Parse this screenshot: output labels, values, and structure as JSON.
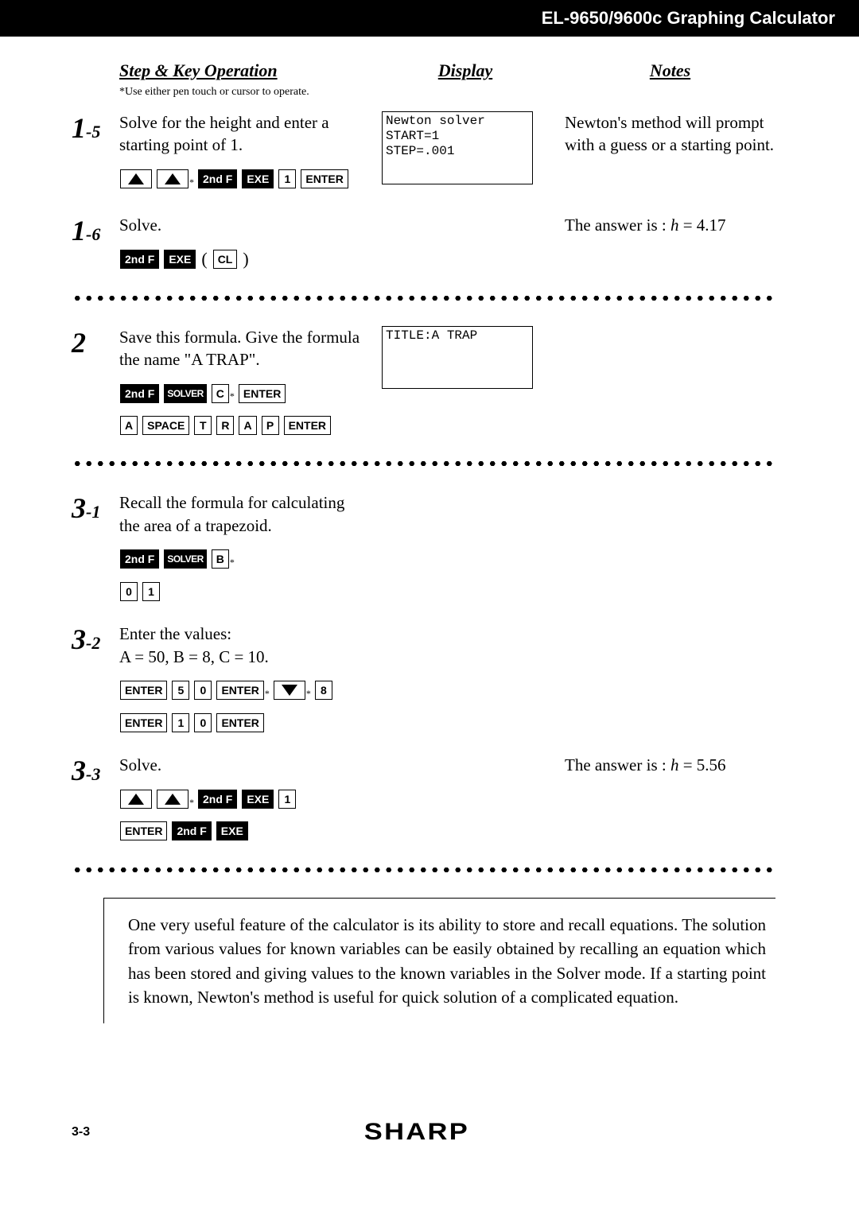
{
  "header": {
    "title": "EL-9650/9600c Graphing Calculator"
  },
  "column_headers": {
    "operation": "Step & Key Operation",
    "display": "Display",
    "notes": "Notes"
  },
  "operation_subnote": "*Use either pen touch or cursor to operate.",
  "steps": {
    "s1_5": {
      "num_big": "1",
      "num_sub": "-5",
      "text": "Solve for the height and enter a starting point of 1.",
      "display": "Newton solver\nSTART=1\nSTEP=.001",
      "note": "Newton's method will prompt with a guess or a starting point.",
      "keys": [
        {
          "t": "arrow-up"
        },
        {
          "t": "arrow-up",
          "star": true
        },
        {
          "t": "dark",
          "label": "2nd F"
        },
        {
          "t": "dark",
          "label": "EXE"
        },
        {
          "t": "light",
          "label": "1"
        },
        {
          "t": "light",
          "label": "ENTER"
        }
      ]
    },
    "s1_6": {
      "num_big": "1",
      "num_sub": "-6",
      "text": "Solve.",
      "note": "The answer is : h = 4.17",
      "keys": [
        {
          "t": "dark",
          "label": "2nd F"
        },
        {
          "t": "dark",
          "label": "EXE"
        },
        {
          "t": "paren",
          "label": "("
        },
        {
          "t": "light",
          "label": "CL"
        },
        {
          "t": "paren",
          "label": ")"
        }
      ]
    },
    "s2": {
      "num_big": "2",
      "num_sub": "",
      "text": "Save this formula. Give the formula the name \"A TRAP\".",
      "display": "TITLE:A TRAP",
      "keys1": [
        {
          "t": "dark",
          "label": "2nd F"
        },
        {
          "t": "dark-small",
          "label": "SOLVER"
        },
        {
          "t": "light",
          "label": "C",
          "star": true
        },
        {
          "t": "light",
          "label": "ENTER"
        }
      ],
      "keys2": [
        {
          "t": "light",
          "label": "A"
        },
        {
          "t": "light",
          "label": "SPACE"
        },
        {
          "t": "light",
          "label": "T"
        },
        {
          "t": "light",
          "label": "R"
        },
        {
          "t": "light",
          "label": "A"
        },
        {
          "t": "light",
          "label": "P"
        },
        {
          "t": "light",
          "label": "ENTER"
        }
      ]
    },
    "s3_1": {
      "num_big": "3",
      "num_sub": "-1",
      "text": "Recall the formula for calculating the area of a trapezoid.",
      "keys1": [
        {
          "t": "dark",
          "label": "2nd F"
        },
        {
          "t": "dark-small",
          "label": "SOLVER"
        },
        {
          "t": "light",
          "label": "B",
          "star": true
        }
      ],
      "keys2": [
        {
          "t": "light",
          "label": "0"
        },
        {
          "t": "light",
          "label": "1"
        }
      ]
    },
    "s3_2": {
      "num_big": "3",
      "num_sub": "-2",
      "text1": "Enter the values:",
      "text2": "A = 50, B = 8, C = 10.",
      "keys1": [
        {
          "t": "light",
          "label": "ENTER"
        },
        {
          "t": "light",
          "label": "5"
        },
        {
          "t": "light",
          "label": "0"
        },
        {
          "t": "light",
          "label": "ENTER",
          "star": true
        },
        {
          "t": "arrow-down",
          "star": true
        },
        {
          "t": "light",
          "label": "8"
        }
      ],
      "keys2": [
        {
          "t": "light",
          "label": "ENTER"
        },
        {
          "t": "light",
          "label": "1"
        },
        {
          "t": "light",
          "label": "0"
        },
        {
          "t": "light",
          "label": "ENTER"
        }
      ]
    },
    "s3_3": {
      "num_big": "3",
      "num_sub": "-3",
      "text": "Solve.",
      "note": "The answer is : h = 5.56",
      "keys1": [
        {
          "t": "arrow-up"
        },
        {
          "t": "arrow-up",
          "star": true
        },
        {
          "t": "dark",
          "label": "2nd F"
        },
        {
          "t": "dark",
          "label": "EXE"
        },
        {
          "t": "light",
          "label": "1"
        }
      ],
      "keys2": [
        {
          "t": "light",
          "label": "ENTER"
        },
        {
          "t": "dark",
          "label": "2nd F"
        },
        {
          "t": "dark",
          "label": "EXE"
        }
      ]
    }
  },
  "summary": "One very useful feature of the calculator is its ability to store and recall equations. The solution from various values for known variables can be easily obtained by recalling an equation which has been stored and giving values to the known variables in the Solver mode. If a starting point is known, Newton's method is useful for quick solution of a complicated equation.",
  "footer": {
    "page": "3-3",
    "brand": "SHARP"
  },
  "italic_vars": {
    "h": "h"
  }
}
